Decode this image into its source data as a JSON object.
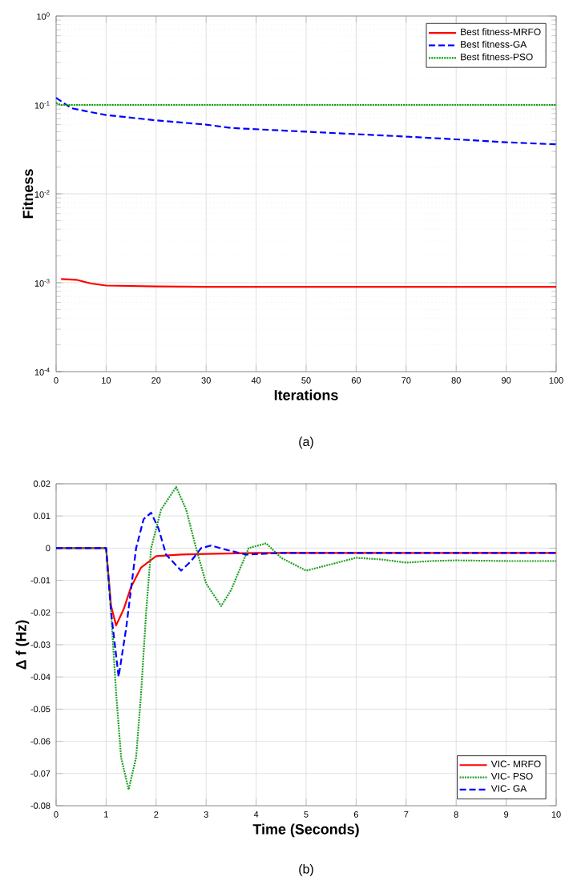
{
  "chart_data": [
    {
      "type": "line",
      "xlabel": "Iterations",
      "ylabel": "Fitness",
      "annotations": [
        "(a)"
      ],
      "log": "y",
      "grid": true,
      "legend": "top right",
      "xlim": [
        0,
        100
      ],
      "ylim": [
        0.0001,
        1
      ],
      "xticks": [
        0,
        10,
        20,
        30,
        40,
        50,
        60,
        70,
        80,
        90,
        100
      ],
      "yticks": [
        {
          "value": 0.0001,
          "label": "10$^{-4}$"
        },
        {
          "value": 0.001,
          "label": "10$^{-3}$"
        },
        {
          "value": 0.01,
          "label": "10$^{-2}$"
        },
        {
          "value": 0.1,
          "label": "10$^{-1}$"
        },
        {
          "value": 1,
          "label": "10$^{0}$"
        }
      ],
      "series": [
        {
          "name": "Best fitness-MRFO",
          "color": "#ff0000",
          "line_style": "solid",
          "x": [
            1,
            4,
            7,
            10,
            20,
            30,
            100
          ],
          "values": [
            0.0011,
            0.00108,
            0.00098,
            0.00093,
            0.00091,
            0.0009,
            0.0009
          ]
        },
        {
          "name": "Best fitness-GA",
          "color": "#0000ff",
          "line_style": "dashed",
          "x": [
            0,
            1,
            3,
            6,
            10,
            20,
            30,
            35,
            50,
            70,
            80,
            90,
            100
          ],
          "values": [
            0.12,
            0.11,
            0.092,
            0.085,
            0.077,
            0.067,
            0.06,
            0.055,
            0.05,
            0.044,
            0.041,
            0.038,
            0.036
          ]
        },
        {
          "name": "Best fitness-PSO",
          "color": "#00a000",
          "line_style": "dotted",
          "x": [
            0,
            1,
            100
          ],
          "values": [
            0.105,
            0.1,
            0.1
          ]
        }
      ]
    },
    {
      "type": "line",
      "xlabel": "Time (Seconds)",
      "ylabel": "Δ f (Hz)",
      "annotations": [
        "(b)"
      ],
      "grid": true,
      "legend": "bottom right",
      "xlim": [
        0,
        10
      ],
      "ylim": [
        -0.08,
        0.02
      ],
      "xticks": [
        0,
        1,
        2,
        3,
        4,
        5,
        6,
        7,
        8,
        9,
        10
      ],
      "yticks": [
        -0.08,
        -0.07,
        -0.06,
        -0.05,
        -0.04,
        -0.03,
        -0.02,
        -0.01,
        0,
        0.01,
        0.02
      ],
      "series": [
        {
          "name": "VIC- MRFO",
          "color": "#ff0000",
          "line_style": "solid",
          "x": [
            0,
            1,
            1.1,
            1.2,
            1.35,
            1.5,
            1.7,
            2.0,
            2.5,
            3,
            4,
            10
          ],
          "values": [
            0,
            0,
            -0.018,
            -0.024,
            -0.019,
            -0.012,
            -0.006,
            -0.0025,
            -0.002,
            -0.0018,
            -0.0015,
            -0.0015
          ]
        },
        {
          "name": "VIC- PSO",
          "color": "#22a022",
          "line_style": "dotted",
          "x": [
            0,
            1,
            1.1,
            1.2,
            1.3,
            1.45,
            1.6,
            1.7,
            1.8,
            1.9,
            2.1,
            2.4,
            2.6,
            2.8,
            3.0,
            3.3,
            3.5,
            3.85,
            4.2,
            4.5,
            5.0,
            5.5,
            6.0,
            6.5,
            7.0,
            7.5,
            8,
            9,
            10
          ],
          "values": [
            0,
            0,
            -0.02,
            -0.045,
            -0.065,
            -0.075,
            -0.065,
            -0.045,
            -0.02,
            0,
            0.012,
            0.019,
            0.012,
            0,
            -0.011,
            -0.018,
            -0.013,
            0,
            0.0015,
            -0.003,
            -0.007,
            -0.005,
            -0.003,
            -0.0035,
            -0.0045,
            -0.004,
            -0.0038,
            -0.004,
            -0.004
          ]
        },
        {
          "name": "VIC- GA",
          "color": "#0000ff",
          "line_style": "dashed",
          "x": [
            0,
            1,
            1.1,
            1.25,
            1.4,
            1.6,
            1.75,
            1.9,
            2.05,
            2.2,
            2.5,
            2.7,
            2.9,
            3.1,
            3.4,
            3.8,
            4.5,
            10
          ],
          "values": [
            0,
            0,
            -0.02,
            -0.04,
            -0.025,
            0,
            0.009,
            0.011,
            0.006,
            -0.002,
            -0.007,
            -0.004,
            0,
            0.0008,
            -0.0005,
            -0.002,
            -0.0015,
            -0.0015
          ]
        }
      ]
    }
  ]
}
